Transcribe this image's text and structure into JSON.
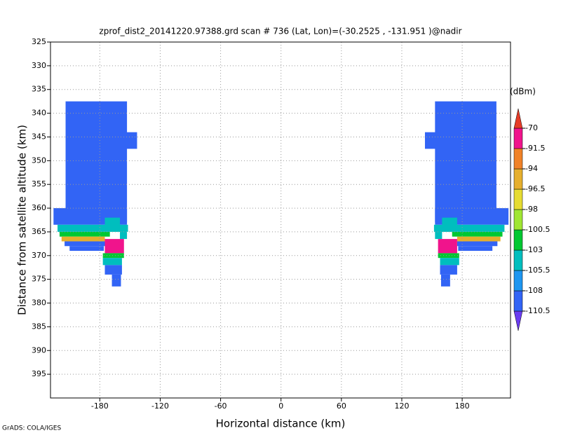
{
  "chart_data": {
    "type": "heatmap",
    "title": "zprof_dist2_20141220.97388.grd  scan # 736  (Lat, Lon)=(-30.2525 , -131.951 )@nadir",
    "xlabel": "Horizontal distance (km)",
    "ylabel": "Distance from satellite altitude (km)",
    "footer": "GrADS: COLA/IGES",
    "colorbar_unit": "(dBm)",
    "xlim": [
      -229,
      228
    ],
    "xticks": [
      -180,
      -120,
      -60,
      0,
      60,
      120,
      180
    ],
    "ylim": [
      325,
      400
    ],
    "yticks": [
      325,
      330,
      335,
      340,
      345,
      350,
      355,
      360,
      365,
      370,
      375,
      380,
      385,
      390,
      395
    ],
    "y_inverted": true,
    "grid": true,
    "levels": [
      -110.5,
      -108,
      -105.5,
      -103,
      -100.5,
      -98,
      -96.5,
      -94,
      -91.5,
      -70
    ],
    "colors": [
      "#6a3cf0",
      "#3264f5",
      "#1e96f0",
      "#00bebe",
      "#00c832",
      "#a0e632",
      "#e6dc32",
      "#e6af2d",
      "#f08228",
      "#f0148c",
      "#e63c28"
    ],
    "cells": [
      {
        "x": [
          -214,
          -153
        ],
        "y": [
          337.5,
          363
        ],
        "value": -109
      },
      {
        "x": [
          -154,
          -143
        ],
        "y": [
          344,
          347.5
        ],
        "value": -109
      },
      {
        "x": [
          -226,
          -153
        ],
        "y": [
          360,
          363.5
        ],
        "value": -109
      },
      {
        "x": [
          -222,
          -152
        ],
        "y": [
          363.5,
          365
        ],
        "value": -104
      },
      {
        "x": [
          -175,
          -160
        ],
        "y": [
          362,
          364
        ],
        "value": -104
      },
      {
        "x": [
          -160,
          -153
        ],
        "y": [
          364,
          366.5
        ],
        "value": -104
      },
      {
        "x": [
          -220,
          -170
        ],
        "y": [
          365,
          366
        ],
        "value": -101
      },
      {
        "x": [
          -218,
          -175
        ],
        "y": [
          366,
          367
        ],
        "value": -95
      },
      {
        "x": [
          -215,
          -175
        ],
        "y": [
          367,
          368
        ],
        "value": -109
      },
      {
        "x": [
          -210,
          -176
        ],
        "y": [
          368,
          369
        ],
        "value": -109
      },
      {
        "x": [
          -175,
          -156
        ],
        "y": [
          366.5,
          369.5
        ],
        "value": -80
      },
      {
        "x": [
          -177,
          -156
        ],
        "y": [
          369.5,
          370.5
        ],
        "value": -101
      },
      {
        "x": [
          -177,
          -158
        ],
        "y": [
          370.5,
          372
        ],
        "value": -104
      },
      {
        "x": [
          -175,
          -158
        ],
        "y": [
          372,
          374
        ],
        "value": -109
      },
      {
        "x": [
          -168,
          -159
        ],
        "y": [
          374,
          376.5
        ],
        "value": -109
      },
      {
        "x": [
          153,
          214
        ],
        "y": [
          337.5,
          363
        ],
        "value": -109
      },
      {
        "x": [
          143,
          154
        ],
        "y": [
          344,
          347.5
        ],
        "value": -109
      },
      {
        "x": [
          153,
          226
        ],
        "y": [
          360,
          363.5
        ],
        "value": -109
      },
      {
        "x": [
          152,
          222
        ],
        "y": [
          363.5,
          365
        ],
        "value": -104
      },
      {
        "x": [
          160,
          175
        ],
        "y": [
          362,
          364
        ],
        "value": -104
      },
      {
        "x": [
          153,
          160
        ],
        "y": [
          364,
          366.5
        ],
        "value": -104
      },
      {
        "x": [
          170,
          220
        ],
        "y": [
          365,
          366
        ],
        "value": -101
      },
      {
        "x": [
          175,
          218
        ],
        "y": [
          366,
          367
        ],
        "value": -95
      },
      {
        "x": [
          175,
          215
        ],
        "y": [
          367,
          368
        ],
        "value": -109
      },
      {
        "x": [
          176,
          210
        ],
        "y": [
          368,
          369
        ],
        "value": -109
      },
      {
        "x": [
          156,
          175
        ],
        "y": [
          366.5,
          369.5
        ],
        "value": -80
      },
      {
        "x": [
          156,
          177
        ],
        "y": [
          369.5,
          370.5
        ],
        "value": -101
      },
      {
        "x": [
          158,
          177
        ],
        "y": [
          370.5,
          372
        ],
        "value": -104
      },
      {
        "x": [
          158,
          175
        ],
        "y": [
          372,
          374
        ],
        "value": -109
      },
      {
        "x": [
          159,
          168
        ],
        "y": [
          374,
          376.5
        ],
        "value": -109
      }
    ]
  }
}
